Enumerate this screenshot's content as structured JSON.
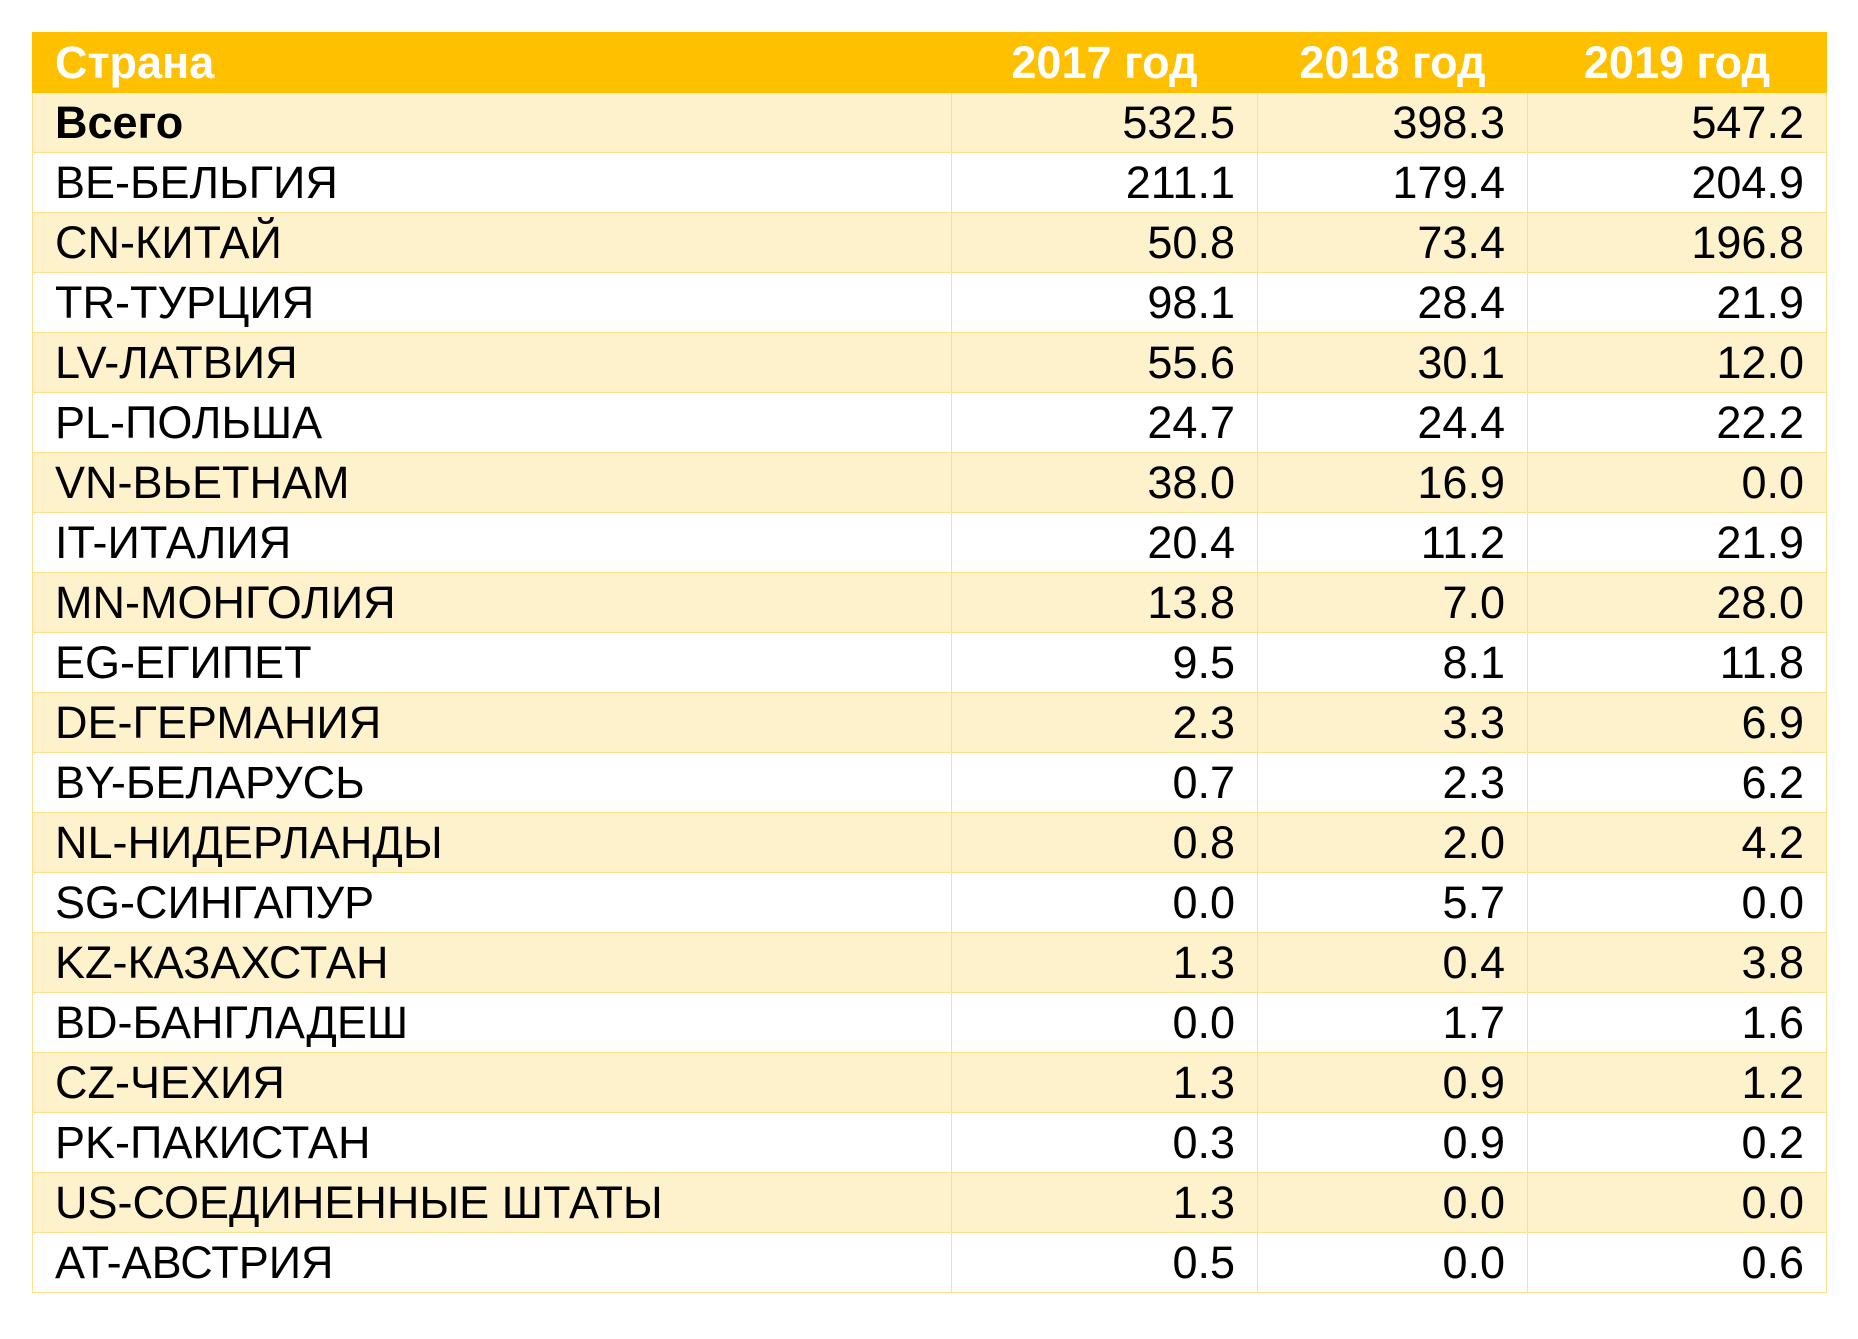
{
  "table": {
    "header": [
      "Страна",
      "2017 год",
      "2018 год",
      "2019 год"
    ],
    "rows": [
      [
        "Всего",
        "532.5",
        "398.3",
        "547.2"
      ],
      [
        "BE-БЕЛЬГИЯ",
        "211.1",
        "179.4",
        "204.9"
      ],
      [
        "CN-КИТАЙ",
        "50.8",
        "73.4",
        "196.8"
      ],
      [
        "TR-ТУРЦИЯ",
        "98.1",
        "28.4",
        "21.9"
      ],
      [
        "LV-ЛАТВИЯ",
        "55.6",
        "30.1",
        "12.0"
      ],
      [
        "PL-ПОЛЬША",
        "24.7",
        "24.4",
        "22.2"
      ],
      [
        "VN-ВЬЕТНАМ",
        "38.0",
        "16.9",
        "0.0"
      ],
      [
        "IT-ИТАЛИЯ",
        "20.4",
        "11.2",
        "21.9"
      ],
      [
        "MN-МОНГОЛИЯ",
        "13.8",
        "7.0",
        "28.0"
      ],
      [
        "EG-ЕГИПЕТ",
        "9.5",
        "8.1",
        "11.8"
      ],
      [
        "DE-ГЕРМАНИЯ",
        "2.3",
        "3.3",
        "6.9"
      ],
      [
        "BY-БЕЛАРУСЬ",
        "0.7",
        "2.3",
        "6.2"
      ],
      [
        "NL-НИДЕРЛАНДЫ",
        "0.8",
        "2.0",
        "4.2"
      ],
      [
        "SG-СИНГАПУР",
        "0.0",
        "5.7",
        "0.0"
      ],
      [
        "KZ-КАЗАХСТАН",
        "1.3",
        "0.4",
        "3.8"
      ],
      [
        "BD-БАНГЛАДЕШ",
        "0.0",
        "1.7",
        "1.6"
      ],
      [
        "CZ-ЧЕХИЯ",
        "1.3",
        "0.9",
        "1.2"
      ],
      [
        "PK-ПАКИСТАН",
        "0.3",
        "0.9",
        "0.2"
      ],
      [
        "US-СОЕДИНЕННЫЕ ШТАТЫ",
        "1.3",
        "0.0",
        "0.0"
      ],
      [
        "AT-АВСТРИЯ",
        "0.5",
        "0.0",
        "0.6"
      ]
    ]
  }
}
